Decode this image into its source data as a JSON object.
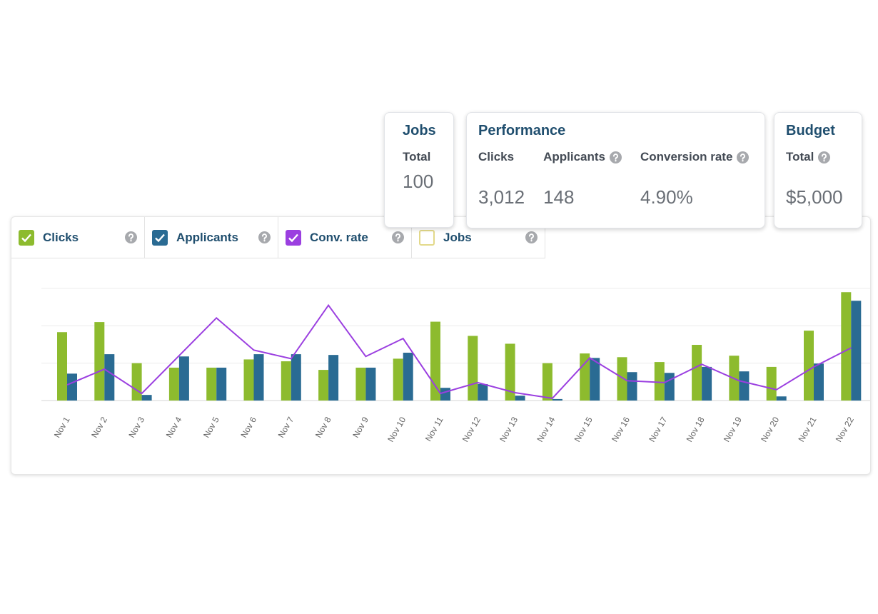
{
  "cards": [
    {
      "title": "Jobs",
      "items": [
        {
          "label": "Total",
          "value": "100",
          "help": false
        }
      ]
    },
    {
      "title": "Performance",
      "items": [
        {
          "label": "Clicks",
          "value": "3,012",
          "help": false
        },
        {
          "label": "Applicants",
          "value": "148",
          "help": true
        },
        {
          "label": "Conversion rate",
          "value": "4.90%",
          "help": true
        }
      ]
    },
    {
      "title": "Budget",
      "items": [
        {
          "label": "Total",
          "value": "$5,000",
          "help": true
        }
      ]
    }
  ],
  "chart_data": {
    "type": "bar",
    "categories": [
      "Nov 1",
      "Nov 2",
      "Nov 3",
      "Nov 4",
      "Nov 5",
      "Nov 6",
      "Nov 7",
      "Nov 8",
      "Nov 9",
      "Nov 10",
      "Nov 11",
      "Nov 12",
      "Nov 13",
      "Nov 14",
      "Nov 15",
      "Nov 16",
      "Nov 17",
      "Nov 18",
      "Nov 19",
      "Nov 20",
      "Nov 21",
      "Nov 22"
    ],
    "series": [
      {
        "name": "Clicks",
        "color": "#8dbb2e",
        "checked": true,
        "type": "bar",
        "values": [
          1.83,
          2.1,
          1.0,
          0.88,
          0.88,
          1.1,
          1.05,
          0.82,
          0.88,
          1.12,
          2.11,
          1.73,
          1.52,
          1.0,
          1.26,
          1.16,
          1.03,
          1.49,
          1.2,
          0.9,
          1.87,
          2.9
        ]
      },
      {
        "name": "Applicants",
        "color": "#2a6b93",
        "checked": true,
        "type": "bar",
        "values": [
          0.72,
          1.24,
          0.15,
          1.18,
          0.88,
          1.24,
          1.24,
          1.22,
          0.88,
          1.28,
          0.34,
          0.44,
          0.13,
          0.04,
          1.14,
          0.76,
          0.74,
          0.9,
          0.78,
          0.11,
          0.99,
          2.67
        ]
      },
      {
        "name": "Conv. rate",
        "color": "#9b3fe0",
        "checked": true,
        "type": "line",
        "values": [
          0.42,
          0.84,
          0.19,
          1.2,
          2.21,
          1.35,
          1.12,
          2.55,
          1.18,
          1.66,
          0.19,
          0.48,
          0.21,
          0.06,
          1.14,
          0.53,
          0.48,
          0.97,
          0.53,
          0.29,
          0.9,
          1.41
        ]
      },
      {
        "name": "Jobs",
        "color": "#e3d98a",
        "checked": false,
        "type": "line"
      }
    ],
    "ylim": [
      0,
      3
    ],
    "yticks": [
      0,
      1,
      2,
      3
    ],
    "grid": true,
    "help": true
  }
}
